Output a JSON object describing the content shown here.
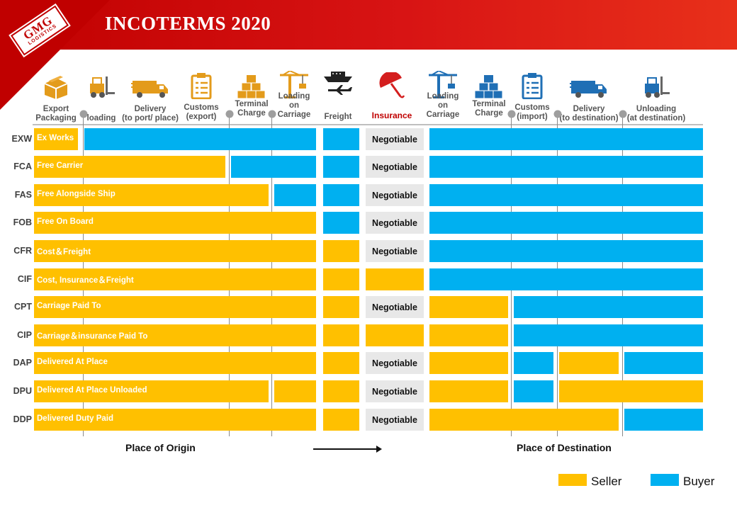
{
  "title": "INCOTERMS 2020",
  "logo": {
    "mark": "GMG",
    "sub": "LOGISTICS"
  },
  "columns": [
    {
      "label": "Export\nPackaging",
      "icon": "boxes-icon"
    },
    {
      "label": "loading",
      "icon": "forklift-icon"
    },
    {
      "label": "Delivery\n(to port/ place)",
      "icon": "truck-icon"
    },
    {
      "label": "Customs\n(export)",
      "icon": "clipboard-icon"
    },
    {
      "label": "Terminal\nCharge",
      "icon": "stacked-boxes-icon"
    },
    {
      "label": "Loading\non\nCarriage",
      "icon": "crane-icon"
    },
    {
      "label": "Freight",
      "icon": "ship-plane-icon"
    },
    {
      "label": "Insurance",
      "icon": "umbrella-icon"
    },
    {
      "label": "Loading\non\nCarriage",
      "icon": "crane-icon"
    },
    {
      "label": "Terminal\nCharge",
      "icon": "stacked-boxes-icon"
    },
    {
      "label": "Customs\n(import)",
      "icon": "clipboard-icon"
    },
    {
      "label": "Delivery\n(to destination)",
      "icon": "truck-icon"
    },
    {
      "label": "Unloading\n(at destination)",
      "icon": "forklift-icon"
    }
  ],
  "negotiable_label": "Negotiable",
  "rows": [
    {
      "code": "EXW",
      "name": "Ex Works"
    },
    {
      "code": "FCA",
      "name": "Free Carrier"
    },
    {
      "code": "FAS",
      "name": "Free Alongside Ship"
    },
    {
      "code": "FOB",
      "name": "Free On Board"
    },
    {
      "code": "CFR",
      "name": "Cost＆Freight"
    },
    {
      "code": "CIF",
      "name": "Cost, Insurance＆Freight"
    },
    {
      "code": "CPT",
      "name": "Carriage Paid To"
    },
    {
      "code": "CIP",
      "name": "Carriage＆insurance Paid To"
    },
    {
      "code": "DAP",
      "name": "Delivered At Place"
    },
    {
      "code": "DPU",
      "name": "Delivered At Place Unloaded"
    },
    {
      "code": "DDP",
      "name": "Delivered Duty Paid"
    }
  ],
  "places": {
    "origin": "Place of Origin",
    "destination": "Place of Destination"
  },
  "legend": {
    "seller": "Seller",
    "buyer": "Buyer",
    "seller_color": "#ffc000",
    "buyer_color": "#00b0f0"
  }
}
